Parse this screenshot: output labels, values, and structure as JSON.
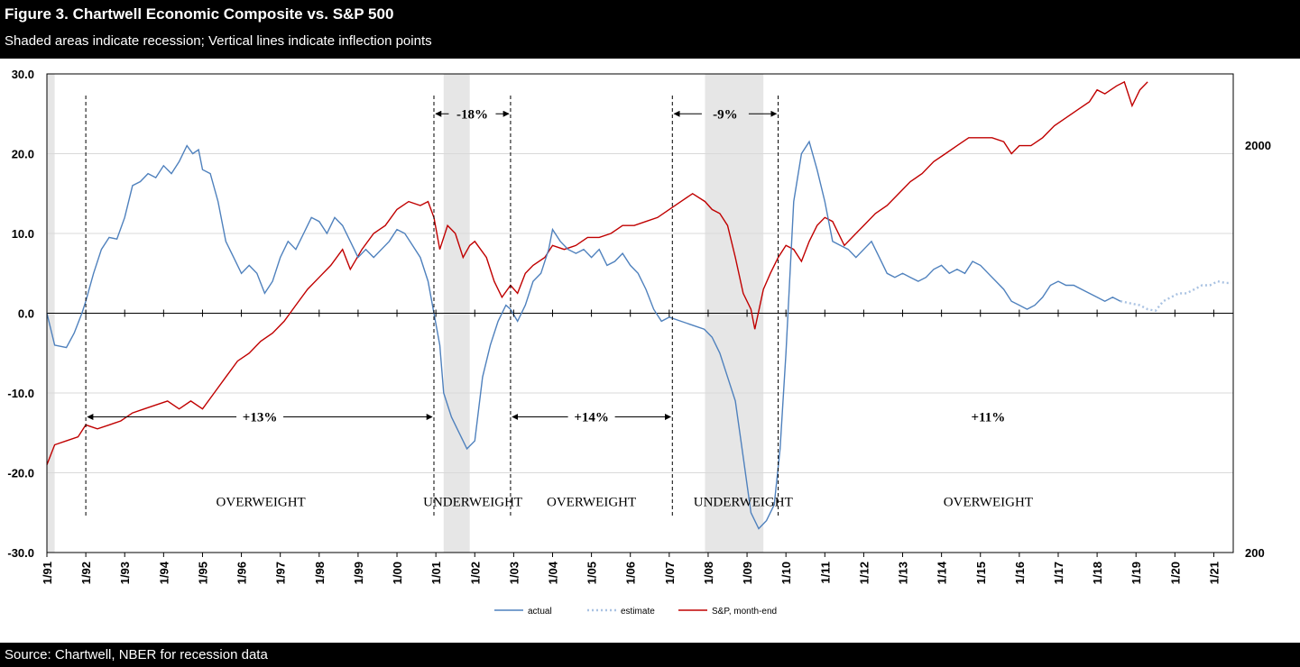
{
  "header": {
    "title": "Figure 3. Chartwell Economic Composite vs. S&P 500",
    "subtitle": "Shaded areas indicate recession; Vertical lines indicate inflection points"
  },
  "footer": {
    "source": "Source: Chartwell, NBER for recession data"
  },
  "colors": {
    "actual": "#4f81bd",
    "estimate": "#a9c2e2",
    "sp": "#c00000",
    "sp_light": "#e07070",
    "recession": "#e6e6e6",
    "grid": "#d9d9d9"
  },
  "chart_data": {
    "type": "line",
    "title": "Figure 3. Chartwell Economic Composite vs. S&P 500",
    "ylim": [
      -30,
      30
    ],
    "y_ticks": [
      "30.0",
      "20.0",
      "10.0",
      "0.0",
      "-10.0",
      "-20.0",
      "-30.0"
    ],
    "y2_scale": "log",
    "y2_ticks": [
      "2000",
      "200"
    ],
    "x_range": [
      1991.0,
      2021.5
    ],
    "x_tick_labels": [
      "1/91",
      "1/92",
      "1/93",
      "1/94",
      "1/95",
      "1/96",
      "1/97",
      "1/98",
      "1/99",
      "1/00",
      "1/01",
      "1/02",
      "1/03",
      "1/04",
      "1/05",
      "1/06",
      "1/07",
      "1/08",
      "1/09",
      "1/10",
      "1/11",
      "1/12",
      "1/13",
      "1/14",
      "1/15",
      "1/16",
      "1/17",
      "1/18",
      "1/19",
      "1/20",
      "1/21"
    ],
    "legend": [
      "actual",
      "estimate",
      "S&P, month-end"
    ],
    "legend_position": "bottom",
    "grid": true,
    "recessions": [
      [
        1991.0,
        1991.2
      ],
      [
        2001.2,
        2001.87
      ],
      [
        2007.92,
        2009.42
      ]
    ],
    "inflection_lines": [
      1992.0,
      2000.95,
      2002.92,
      2007.08,
      2009.8
    ],
    "annotations": [
      {
        "text": "-18%",
        "from": 2000.95,
        "to": 2002.92,
        "y": 25
      },
      {
        "text": "-9%",
        "from": 2007.08,
        "to": 2009.8,
        "y": 25
      },
      {
        "text": "+13%",
        "from": 1992.0,
        "to": 2000.95,
        "y": -13
      },
      {
        "text": "+14%",
        "from": 2002.92,
        "to": 2007.08,
        "y": -13
      },
      {
        "text": "+11%",
        "from": null,
        "to": null,
        "y": -13
      }
    ],
    "zones": [
      "OVERWEIGHT",
      "UNDERWEIGHT",
      "OVERWEIGHT",
      "UNDERWEIGHT",
      "OVERWEIGHT"
    ],
    "series": [
      {
        "name": "actual",
        "axis": "left",
        "points": [
          [
            1991.0,
            0
          ],
          [
            1991.2,
            -4
          ],
          [
            1991.5,
            -4.3
          ],
          [
            1991.7,
            -2.5
          ],
          [
            1991.9,
            0
          ],
          [
            1992.0,
            1.5
          ],
          [
            1992.2,
            5
          ],
          [
            1992.4,
            8
          ],
          [
            1992.6,
            9.5
          ],
          [
            1992.8,
            9.3
          ],
          [
            1993.0,
            12
          ],
          [
            1993.2,
            16
          ],
          [
            1993.4,
            16.5
          ],
          [
            1993.6,
            17.5
          ],
          [
            1993.8,
            17
          ],
          [
            1994.0,
            18.5
          ],
          [
            1994.2,
            17.5
          ],
          [
            1994.4,
            19
          ],
          [
            1994.6,
            21
          ],
          [
            1994.75,
            20
          ],
          [
            1994.9,
            20.5
          ],
          [
            1995.0,
            18
          ],
          [
            1995.2,
            17.5
          ],
          [
            1995.4,
            14
          ],
          [
            1995.6,
            9
          ],
          [
            1995.8,
            7
          ],
          [
            1996.0,
            5
          ],
          [
            1996.2,
            6
          ],
          [
            1996.4,
            5
          ],
          [
            1996.6,
            2.5
          ],
          [
            1996.8,
            4
          ],
          [
            1997.0,
            7
          ],
          [
            1997.2,
            9
          ],
          [
            1997.4,
            8
          ],
          [
            1997.6,
            10
          ],
          [
            1997.8,
            12
          ],
          [
            1998.0,
            11.5
          ],
          [
            1998.2,
            10
          ],
          [
            1998.4,
            12
          ],
          [
            1998.6,
            11
          ],
          [
            1998.8,
            9
          ],
          [
            1999.0,
            7
          ],
          [
            1999.2,
            8
          ],
          [
            1999.4,
            7
          ],
          [
            1999.6,
            8
          ],
          [
            1999.8,
            9
          ],
          [
            2000.0,
            10.5
          ],
          [
            2000.2,
            10
          ],
          [
            2000.4,
            8.5
          ],
          [
            2000.6,
            7
          ],
          [
            2000.8,
            4
          ],
          [
            2000.95,
            0
          ],
          [
            2001.1,
            -4
          ],
          [
            2001.2,
            -10
          ],
          [
            2001.4,
            -13
          ],
          [
            2001.6,
            -15
          ],
          [
            2001.8,
            -17
          ],
          [
            2002.0,
            -16
          ],
          [
            2002.2,
            -8
          ],
          [
            2002.4,
            -4
          ],
          [
            2002.6,
            -1
          ],
          [
            2002.8,
            1
          ],
          [
            2002.92,
            0.5
          ],
          [
            2003.1,
            -1
          ],
          [
            2003.3,
            1
          ],
          [
            2003.5,
            4
          ],
          [
            2003.7,
            5
          ],
          [
            2003.9,
            8
          ],
          [
            2004.0,
            10.5
          ],
          [
            2004.2,
            9
          ],
          [
            2004.4,
            8
          ],
          [
            2004.6,
            7.5
          ],
          [
            2004.8,
            8
          ],
          [
            2005.0,
            7
          ],
          [
            2005.2,
            8
          ],
          [
            2005.4,
            6
          ],
          [
            2005.6,
            6.5
          ],
          [
            2005.8,
            7.5
          ],
          [
            2006.0,
            6
          ],
          [
            2006.2,
            5
          ],
          [
            2006.4,
            3
          ],
          [
            2006.6,
            0.5
          ],
          [
            2006.8,
            -1
          ],
          [
            2007.0,
            -0.5
          ],
          [
            2007.3,
            -1
          ],
          [
            2007.6,
            -1.5
          ],
          [
            2007.9,
            -2
          ],
          [
            2008.1,
            -3
          ],
          [
            2008.3,
            -5
          ],
          [
            2008.5,
            -8
          ],
          [
            2008.7,
            -11
          ],
          [
            2008.9,
            -18
          ],
          [
            2009.1,
            -25
          ],
          [
            2009.3,
            -27
          ],
          [
            2009.5,
            -26
          ],
          [
            2009.7,
            -24
          ],
          [
            2009.85,
            -17
          ],
          [
            2010.0,
            -5
          ],
          [
            2010.2,
            14
          ],
          [
            2010.4,
            20
          ],
          [
            2010.6,
            21.5
          ],
          [
            2010.8,
            18
          ],
          [
            2011.0,
            14
          ],
          [
            2011.2,
            9
          ],
          [
            2011.4,
            8.5
          ],
          [
            2011.6,
            8
          ],
          [
            2011.8,
            7
          ],
          [
            2012.0,
            8
          ],
          [
            2012.2,
            9
          ],
          [
            2012.4,
            7
          ],
          [
            2012.6,
            5
          ],
          [
            2012.8,
            4.5
          ],
          [
            2013.0,
            5
          ],
          [
            2013.2,
            4.5
          ],
          [
            2013.4,
            4
          ],
          [
            2013.6,
            4.5
          ],
          [
            2013.8,
            5.5
          ],
          [
            2014.0,
            6
          ],
          [
            2014.2,
            5
          ],
          [
            2014.4,
            5.5
          ],
          [
            2014.6,
            5
          ],
          [
            2014.8,
            6.5
          ],
          [
            2015.0,
            6
          ],
          [
            2015.2,
            5
          ],
          [
            2015.4,
            4
          ],
          [
            2015.6,
            3
          ],
          [
            2015.8,
            1.5
          ],
          [
            2016.0,
            1
          ],
          [
            2016.2,
            0.5
          ],
          [
            2016.4,
            1
          ],
          [
            2016.6,
            2
          ],
          [
            2016.8,
            3.5
          ],
          [
            2017.0,
            4
          ],
          [
            2017.2,
            3.5
          ],
          [
            2017.4,
            3.5
          ],
          [
            2017.6,
            3
          ],
          [
            2017.8,
            2.5
          ],
          [
            2018.0,
            2
          ],
          [
            2018.2,
            1.5
          ],
          [
            2018.4,
            2
          ],
          [
            2018.6,
            1.5
          ]
        ]
      },
      {
        "name": "estimate",
        "axis": "left",
        "points": [
          [
            2018.6,
            1.5
          ],
          [
            2018.9,
            1.2
          ],
          [
            2019.1,
            1
          ],
          [
            2019.3,
            0.5
          ],
          [
            2019.5,
            0.3
          ],
          [
            2019.7,
            1.5
          ],
          [
            2019.9,
            2
          ],
          [
            2020.1,
            2.5
          ],
          [
            2020.3,
            2.5
          ],
          [
            2020.5,
            3
          ],
          [
            2020.7,
            3.5
          ],
          [
            2020.9,
            3.5
          ],
          [
            2021.1,
            4
          ],
          [
            2021.3,
            3.8
          ],
          [
            2021.45,
            3.8
          ]
        ]
      },
      {
        "name": "S&P, month-end",
        "axis": "right",
        "points": [
          [
            1991.0,
            -19
          ],
          [
            1991.2,
            -16.5
          ],
          [
            1991.5,
            -16
          ],
          [
            1991.8,
            -15.5
          ],
          [
            1992.0,
            -14
          ],
          [
            1992.3,
            -14.5
          ],
          [
            1992.6,
            -14
          ],
          [
            1992.9,
            -13.5
          ],
          [
            1993.2,
            -12.5
          ],
          [
            1993.5,
            -12
          ],
          [
            1993.8,
            -11.5
          ],
          [
            1994.1,
            -11
          ],
          [
            1994.4,
            -12
          ],
          [
            1994.7,
            -11
          ],
          [
            1995.0,
            -12
          ],
          [
            1995.3,
            -10
          ],
          [
            1995.6,
            -8
          ],
          [
            1995.9,
            -6
          ],
          [
            1996.2,
            -5
          ],
          [
            1996.5,
            -3.5
          ],
          [
            1996.8,
            -2.5
          ],
          [
            1997.1,
            -1
          ],
          [
            1997.4,
            1
          ],
          [
            1997.7,
            3
          ],
          [
            1998.0,
            4.5
          ],
          [
            1998.3,
            6
          ],
          [
            1998.6,
            8
          ],
          [
            1998.8,
            5.5
          ],
          [
            1999.1,
            8
          ],
          [
            1999.4,
            10
          ],
          [
            1999.7,
            11
          ],
          [
            2000.0,
            13
          ],
          [
            2000.3,
            14
          ],
          [
            2000.6,
            13.5
          ],
          [
            2000.8,
            14
          ],
          [
            2000.95,
            12
          ],
          [
            2001.1,
            8
          ],
          [
            2001.3,
            11
          ],
          [
            2001.5,
            10
          ],
          [
            2001.7,
            7
          ],
          [
            2001.87,
            8.5
          ],
          [
            2002.0,
            9
          ],
          [
            2002.3,
            7
          ],
          [
            2002.5,
            4
          ],
          [
            2002.7,
            2
          ],
          [
            2002.92,
            3.5
          ],
          [
            2003.1,
            2.5
          ],
          [
            2003.3,
            5
          ],
          [
            2003.5,
            6
          ],
          [
            2003.8,
            7
          ],
          [
            2004.0,
            8.5
          ],
          [
            2004.3,
            8
          ],
          [
            2004.6,
            8.5
          ],
          [
            2004.9,
            9.5
          ],
          [
            2005.2,
            9.5
          ],
          [
            2005.5,
            10
          ],
          [
            2005.8,
            11
          ],
          [
            2006.1,
            11
          ],
          [
            2006.4,
            11.5
          ],
          [
            2006.7,
            12
          ],
          [
            2007.0,
            13
          ],
          [
            2007.3,
            14
          ],
          [
            2007.6,
            15
          ],
          [
            2007.92,
            14
          ],
          [
            2008.1,
            13
          ],
          [
            2008.3,
            12.5
          ],
          [
            2008.5,
            11
          ],
          [
            2008.7,
            7
          ],
          [
            2008.9,
            2.5
          ],
          [
            2009.1,
            0.5
          ],
          [
            2009.2,
            -2
          ],
          [
            2009.42,
            3
          ],
          [
            2009.6,
            5
          ],
          [
            2009.8,
            7
          ],
          [
            2010.0,
            8.5
          ],
          [
            2010.2,
            8
          ],
          [
            2010.4,
            6.5
          ],
          [
            2010.6,
            9
          ],
          [
            2010.8,
            11
          ],
          [
            2011.0,
            12
          ],
          [
            2011.2,
            11.5
          ],
          [
            2011.5,
            8.5
          ],
          [
            2011.8,
            10
          ],
          [
            2012.0,
            11
          ],
          [
            2012.3,
            12.5
          ],
          [
            2012.6,
            13.5
          ],
          [
            2012.9,
            15
          ],
          [
            2013.2,
            16.5
          ],
          [
            2013.5,
            17.5
          ],
          [
            2013.8,
            19
          ],
          [
            2014.1,
            20
          ],
          [
            2014.4,
            21
          ],
          [
            2014.7,
            22
          ],
          [
            2015.0,
            22
          ],
          [
            2015.3,
            22
          ],
          [
            2015.6,
            21.5
          ],
          [
            2015.8,
            20
          ],
          [
            2016.0,
            21
          ],
          [
            2016.3,
            21
          ],
          [
            2016.6,
            22
          ],
          [
            2016.9,
            23.5
          ],
          [
            2017.2,
            24.5
          ],
          [
            2017.5,
            25.5
          ],
          [
            2017.8,
            26.5
          ],
          [
            2018.0,
            28
          ],
          [
            2018.2,
            27.5
          ],
          [
            2018.5,
            28.5
          ],
          [
            2018.7,
            29
          ],
          [
            2018.9,
            26
          ],
          [
            2019.1,
            28
          ],
          [
            2019.3,
            29
          ]
        ]
      }
    ]
  }
}
